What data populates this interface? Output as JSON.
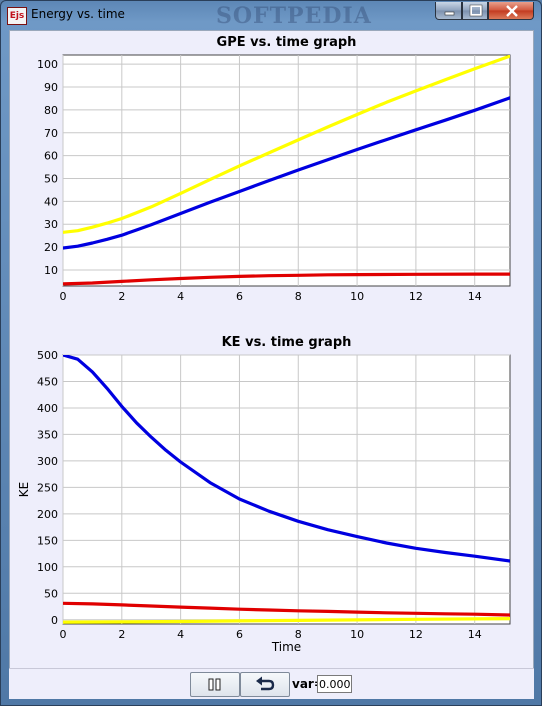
{
  "window": {
    "title": "Energy vs. time",
    "icon_text": "Ejs",
    "watermark": "SOFTPEDIA",
    "controls": [
      "minimize-icon",
      "maximize-icon",
      "close-icon"
    ]
  },
  "toolbar": {
    "pause_icon": "pause-icon",
    "reset_icon": "undo-arrow-icon",
    "var_label": "var=",
    "var_value": "0.000"
  },
  "chart_data": [
    {
      "type": "line",
      "title": "GPE vs. time graph",
      "xlabel": "",
      "ylabel": "",
      "xlim": [
        0,
        15.2
      ],
      "ylim": [
        3,
        104
      ],
      "xticks": [
        0,
        2,
        4,
        6,
        8,
        10,
        12,
        14
      ],
      "yticks": [
        10,
        20,
        30,
        40,
        50,
        60,
        70,
        80,
        90,
        100
      ],
      "grid": true,
      "series": [
        {
          "color": "#ffff00",
          "x": [
            0,
            0.5,
            1,
            1.5,
            2,
            2.5,
            3,
            4,
            5,
            6,
            7,
            8,
            9,
            10,
            11,
            12,
            13,
            14,
            15.2
          ],
          "values": [
            26.5,
            27.2,
            28.7,
            30.5,
            32.5,
            35,
            37.6,
            43.5,
            49.5,
            55.5,
            61.2,
            66.9,
            72.5,
            78,
            83.3,
            88.3,
            93.2,
            98,
            103.5
          ]
        },
        {
          "color": "#0000e0",
          "x": [
            0,
            0.5,
            1,
            1.5,
            2,
            2.5,
            3,
            4,
            5,
            6,
            7,
            8,
            9,
            10,
            11,
            12,
            13,
            14,
            15.2
          ],
          "values": [
            19.6,
            20.4,
            21.8,
            23.4,
            25.2,
            27.5,
            29.8,
            34.7,
            39.6,
            44.3,
            49.1,
            53.7,
            58.2,
            62.7,
            67,
            71.3,
            75.5,
            79.8,
            85.3
          ]
        },
        {
          "color": "#e00000",
          "x": [
            0,
            1,
            2,
            3,
            4,
            5,
            6,
            7,
            8,
            9,
            10,
            12,
            14,
            15.2
          ],
          "values": [
            3.9,
            4.3,
            5,
            5.7,
            6.3,
            6.8,
            7.2,
            7.5,
            7.7,
            7.9,
            8,
            8.1,
            8.2,
            8.2
          ]
        }
      ]
    },
    {
      "type": "line",
      "title": "KE vs. time graph",
      "xlabel": "Time",
      "ylabel": "KE",
      "xlim": [
        0,
        15.2
      ],
      "ylim": [
        -8,
        500
      ],
      "xticks": [
        0,
        2,
        4,
        6,
        8,
        10,
        12,
        14
      ],
      "yticks": [
        0,
        50,
        100,
        150,
        200,
        250,
        300,
        350,
        400,
        450,
        500
      ],
      "grid": true,
      "series": [
        {
          "color": "#0000e0",
          "x": [
            0,
            0.5,
            1,
            1.5,
            2,
            2.5,
            3,
            3.5,
            4,
            5,
            6,
            7,
            8,
            9,
            10,
            11,
            12,
            13,
            14,
            15.2
          ],
          "values": [
            500,
            492,
            468,
            437,
            403,
            372,
            345,
            320,
            298,
            259,
            228,
            205,
            186,
            170,
            157,
            145,
            135,
            127,
            120,
            111
          ]
        },
        {
          "color": "#e00000",
          "x": [
            0,
            1,
            2,
            3,
            4,
            5,
            6,
            7,
            8,
            9,
            10,
            11,
            12,
            13,
            14,
            15.2
          ],
          "values": [
            31,
            30,
            28,
            26,
            24,
            22,
            20,
            18.5,
            17,
            15.8,
            14.5,
            13.2,
            12.2,
            11.3,
            10.5,
            9
          ]
        },
        {
          "color": "#ffff00",
          "x": [
            0,
            2,
            4,
            6,
            8,
            10,
            12,
            14,
            15.2
          ],
          "values": [
            -4.5,
            -4,
            -3.2,
            -2.2,
            -1.2,
            -0.2,
            0.8,
            1.6,
            2.2
          ]
        }
      ]
    }
  ]
}
